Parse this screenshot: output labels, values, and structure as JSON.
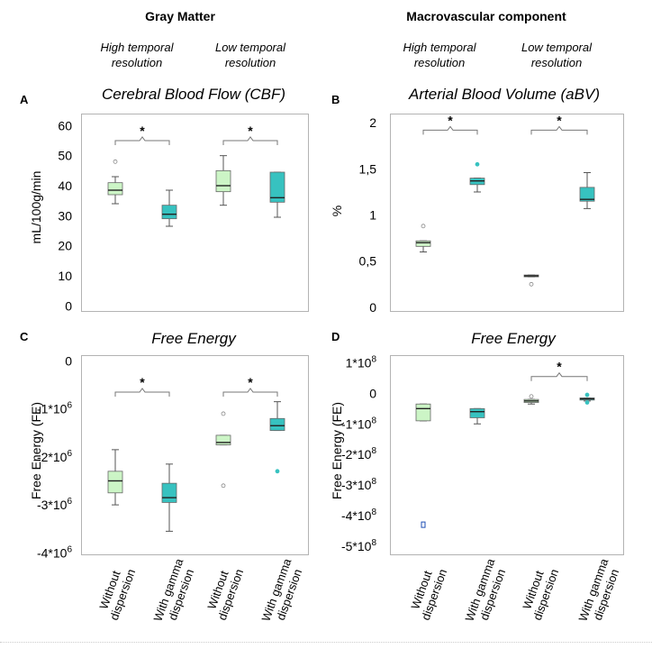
{
  "headers": {
    "gray_matter": "Gray Matter",
    "macrovascular": "Macrovascular component",
    "high_temporal": [
      "High temporal",
      "resolution"
    ],
    "low_temporal": [
      "Low temporal",
      "resolution"
    ]
  },
  "colors": {
    "light_green": "#ccf5c6",
    "teal": "#37c2c0",
    "outline": "#666666",
    "frame": "#b3b3b3",
    "outlier_blue": "#1f4fb5"
  },
  "x_categories": [
    [
      "Without",
      "dispersion"
    ],
    [
      "With gamma",
      "dispersion"
    ],
    [
      "Without",
      "dispersion"
    ],
    [
      "With gamma",
      "dispersion"
    ]
  ],
  "chart_data": [
    {
      "id": "A",
      "letter": "A",
      "type": "box",
      "title": "Cerebral Blood Flow (CBF)",
      "ylabel": "mL/100g/min",
      "ylim": [
        -2,
        64
      ],
      "ticks": [
        0,
        10,
        20,
        30,
        40,
        50,
        60
      ],
      "tick_labels": [
        "0",
        "10",
        "20",
        "30",
        "40",
        "50",
        "60"
      ],
      "boxes": [
        {
          "group": "Without dispersion",
          "resolution": "High temporal",
          "fill": "light_green",
          "min": 34,
          "q1": 37,
          "median": 38.5,
          "q3": 41,
          "max": 43,
          "outliers": [
            48
          ]
        },
        {
          "group": "With gamma dispersion",
          "resolution": "High temporal",
          "fill": "teal",
          "min": 26.5,
          "q1": 29,
          "median": 30.5,
          "q3": 33.5,
          "max": 38.5,
          "outliers": []
        },
        {
          "group": "Without dispersion",
          "resolution": "Low temporal",
          "fill": "light_green",
          "min": 33.5,
          "q1": 38,
          "median": 40,
          "q3": 45,
          "max": 50,
          "outliers": []
        },
        {
          "group": "With gamma dispersion",
          "resolution": "Low temporal",
          "fill": "teal",
          "min": 29.5,
          "q1": 34.5,
          "median": 36,
          "q3": 44.5,
          "max": 44.5,
          "outliers": []
        }
      ],
      "significance": [
        {
          "pair": [
            0,
            1
          ],
          "y": 55,
          "label": "*"
        },
        {
          "pair": [
            2,
            3
          ],
          "y": 55,
          "label": "*"
        }
      ]
    },
    {
      "id": "B",
      "letter": "B",
      "type": "box",
      "title": "Arterial Blood Volume (aBV)",
      "ylabel": "%",
      "ylim": [
        -0.05,
        2.1
      ],
      "ticks": [
        0,
        0.5,
        1,
        1.5,
        2
      ],
      "tick_labels": [
        "0",
        "0,5",
        "1",
        "1,5",
        "2"
      ],
      "boxes": [
        {
          "group": "Without dispersion",
          "resolution": "High temporal",
          "fill": "light_green",
          "min": 0.6,
          "q1": 0.66,
          "median": 0.7,
          "q3": 0.72,
          "max": 0.72,
          "outliers": [
            0.88
          ]
        },
        {
          "group": "With gamma dispersion",
          "resolution": "High temporal",
          "fill": "teal",
          "min": 1.25,
          "q1": 1.33,
          "median": 1.37,
          "q3": 1.4,
          "max": 1.4,
          "outliers": [
            1.55
          ]
        },
        {
          "group": "Without dispersion",
          "resolution": "Low temporal",
          "fill": "light_green",
          "min": 0.33,
          "q1": 0.33,
          "median": 0.34,
          "q3": 0.35,
          "max": 0.35,
          "outliers": [
            0.25
          ]
        },
        {
          "group": "With gamma dispersion",
          "resolution": "Low temporal",
          "fill": "teal",
          "min": 1.07,
          "q1": 1.15,
          "median": 1.17,
          "q3": 1.3,
          "max": 1.46,
          "outliers": []
        }
      ],
      "significance": [
        {
          "pair": [
            0,
            1
          ],
          "y": 1.92,
          "label": "*"
        },
        {
          "pair": [
            2,
            3
          ],
          "y": 1.92,
          "label": "*"
        }
      ]
    },
    {
      "id": "C",
      "letter": "C",
      "type": "box",
      "title": "Free Energy",
      "ylabel": "Free Energy (FE)",
      "unit_exponent": 6,
      "ylim": [
        -4.05,
        0.12
      ],
      "ticks": [
        0,
        -1,
        -2,
        -3,
        -4
      ],
      "tick_labels": [
        "0",
        "-1*10",
        "-2*10",
        "-3*10",
        "-4*10"
      ],
      "tick_superscripts": [
        "",
        "6",
        "6",
        "6",
        "6"
      ],
      "boxes": [
        {
          "group": "Without dispersion",
          "resolution": "High temporal",
          "fill": "light_green",
          "min": -3.0,
          "q1": -2.75,
          "median": -2.5,
          "q3": -2.3,
          "max": -1.85,
          "outliers": []
        },
        {
          "group": "With gamma dispersion",
          "resolution": "High temporal",
          "fill": "teal",
          "min": -3.55,
          "q1": -2.95,
          "median": -2.85,
          "q3": -2.55,
          "max": -2.15,
          "outliers": []
        },
        {
          "group": "Without dispersion",
          "resolution": "Low temporal",
          "fill": "light_green",
          "min": -1.75,
          "q1": -1.75,
          "median": -1.7,
          "q3": -1.55,
          "max": -1.55,
          "outliers": [
            -1.1,
            -2.6
          ]
        },
        {
          "group": "With gamma dispersion",
          "resolution": "Low temporal",
          "fill": "teal",
          "min": -1.45,
          "q1": -1.45,
          "median": -1.35,
          "q3": -1.2,
          "max": -0.85,
          "outliers": [
            -2.3
          ]
        }
      ],
      "significance": [
        {
          "pair": [
            0,
            1
          ],
          "y": -0.65,
          "label": "*"
        },
        {
          "pair": [
            2,
            3
          ],
          "y": -0.65,
          "label": "*"
        }
      ]
    },
    {
      "id": "D",
      "letter": "D",
      "type": "box",
      "title": "Free Energy",
      "ylabel": "Free Energy (FE)",
      "unit_exponent": 8,
      "ylim": [
        -5.3,
        1.25
      ],
      "ticks": [
        1,
        0,
        -1,
        -2,
        -3,
        -4,
        -5
      ],
      "tick_labels": [
        "1*10",
        "0",
        "-1*10",
        "-2*10",
        "-3*10",
        "-4*10",
        "-5*10"
      ],
      "tick_superscripts": [
        "8",
        "",
        "8",
        "8",
        "8",
        "8",
        "8"
      ],
      "boxes": [
        {
          "group": "Without dispersion",
          "resolution": "High temporal",
          "fill": "light_green",
          "min": -0.9,
          "q1": -0.9,
          "median": -0.5,
          "q3": -0.35,
          "max": -0.35,
          "outliers": [
            -4.3
          ]
        },
        {
          "group": "With gamma dispersion",
          "resolution": "High temporal",
          "fill": "teal",
          "min": -1.0,
          "q1": -0.8,
          "median": -0.6,
          "q3": -0.5,
          "max": -0.5,
          "outliers": []
        },
        {
          "group": "Without dispersion",
          "resolution": "Low temporal",
          "fill": "light_green",
          "min": -0.35,
          "q1": -0.3,
          "median": -0.25,
          "q3": -0.2,
          "max": -0.2,
          "outliers": [
            -0.1
          ]
        },
        {
          "group": "With gamma dispersion",
          "resolution": "Low temporal",
          "fill": "teal",
          "min": -0.25,
          "q1": -0.22,
          "median": -0.18,
          "q3": -0.15,
          "max": -0.15,
          "outliers": [
            -0.05,
            -0.3
          ]
        }
      ],
      "significance": [
        {
          "pair": [
            2,
            3
          ],
          "y": 0.55,
          "label": "*"
        }
      ]
    }
  ]
}
